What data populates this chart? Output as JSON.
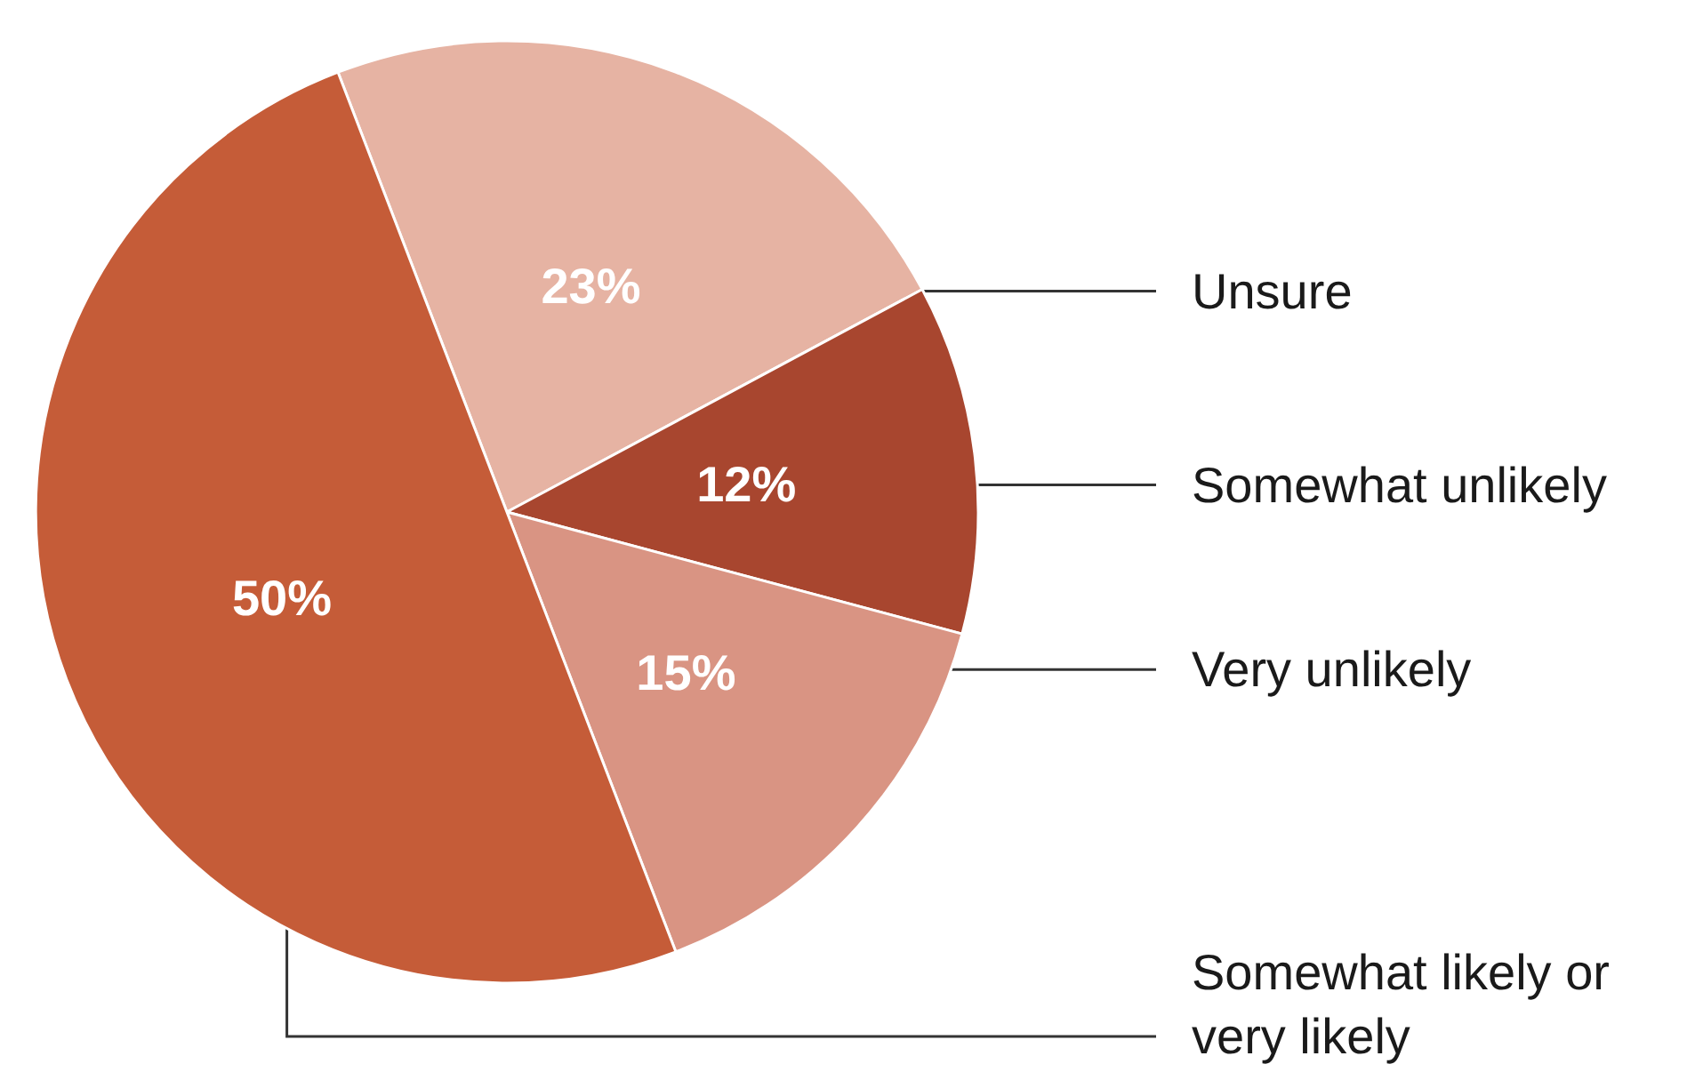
{
  "chart_data": {
    "type": "pie",
    "categories": [
      "Unsure",
      "Somewhat unlikely",
      "Very unlikely",
      "Somewhat likely or very likely"
    ],
    "values": [
      23,
      12,
      15,
      50
    ],
    "colors": [
      "#e6b3a3",
      "#a8462f",
      "#d99483",
      "#c55c38"
    ],
    "value_labels": [
      "23%",
      "12%",
      "15%",
      "50%"
    ]
  }
}
